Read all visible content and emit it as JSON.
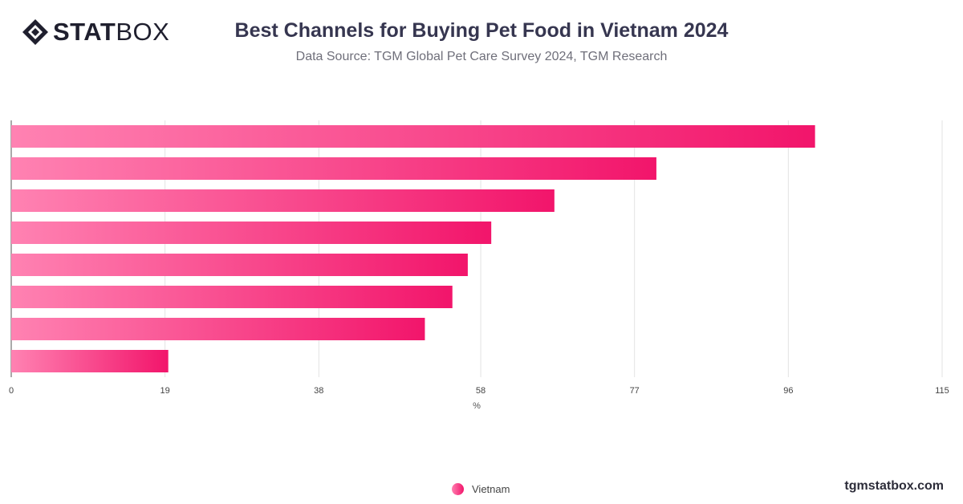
{
  "header": {
    "logo_bold": "STAT",
    "logo_thin": "BOX",
    "title": "Best Channels for Buying Pet Food in Vietnam 2024",
    "subtitle": "Data Source: TGM Global Pet Care Survey 2024, TGM Research"
  },
  "footer": {
    "site": "tgmstatbox.com"
  },
  "chart_data": {
    "type": "bar",
    "orientation": "horizontal",
    "categories": [
      "",
      "",
      "",
      "",
      "",
      "",
      "",
      ""
    ],
    "series": [
      {
        "name": "Vietnam",
        "values": [
          99.3,
          79.7,
          67.1,
          59.3,
          56.4,
          54.5,
          51.1,
          19.4
        ]
      }
    ],
    "xlabel": "%",
    "ylabel": "",
    "xlim": [
      0,
      115
    ],
    "xticks": [
      0,
      19,
      38,
      58,
      77,
      96,
      115
    ],
    "grid": true,
    "legend": "bottom",
    "colors": {
      "bar_start": "#ff82b2",
      "bar_end": "#f2156b",
      "grid": "#e3e3e3",
      "axis": "#555555"
    }
  }
}
